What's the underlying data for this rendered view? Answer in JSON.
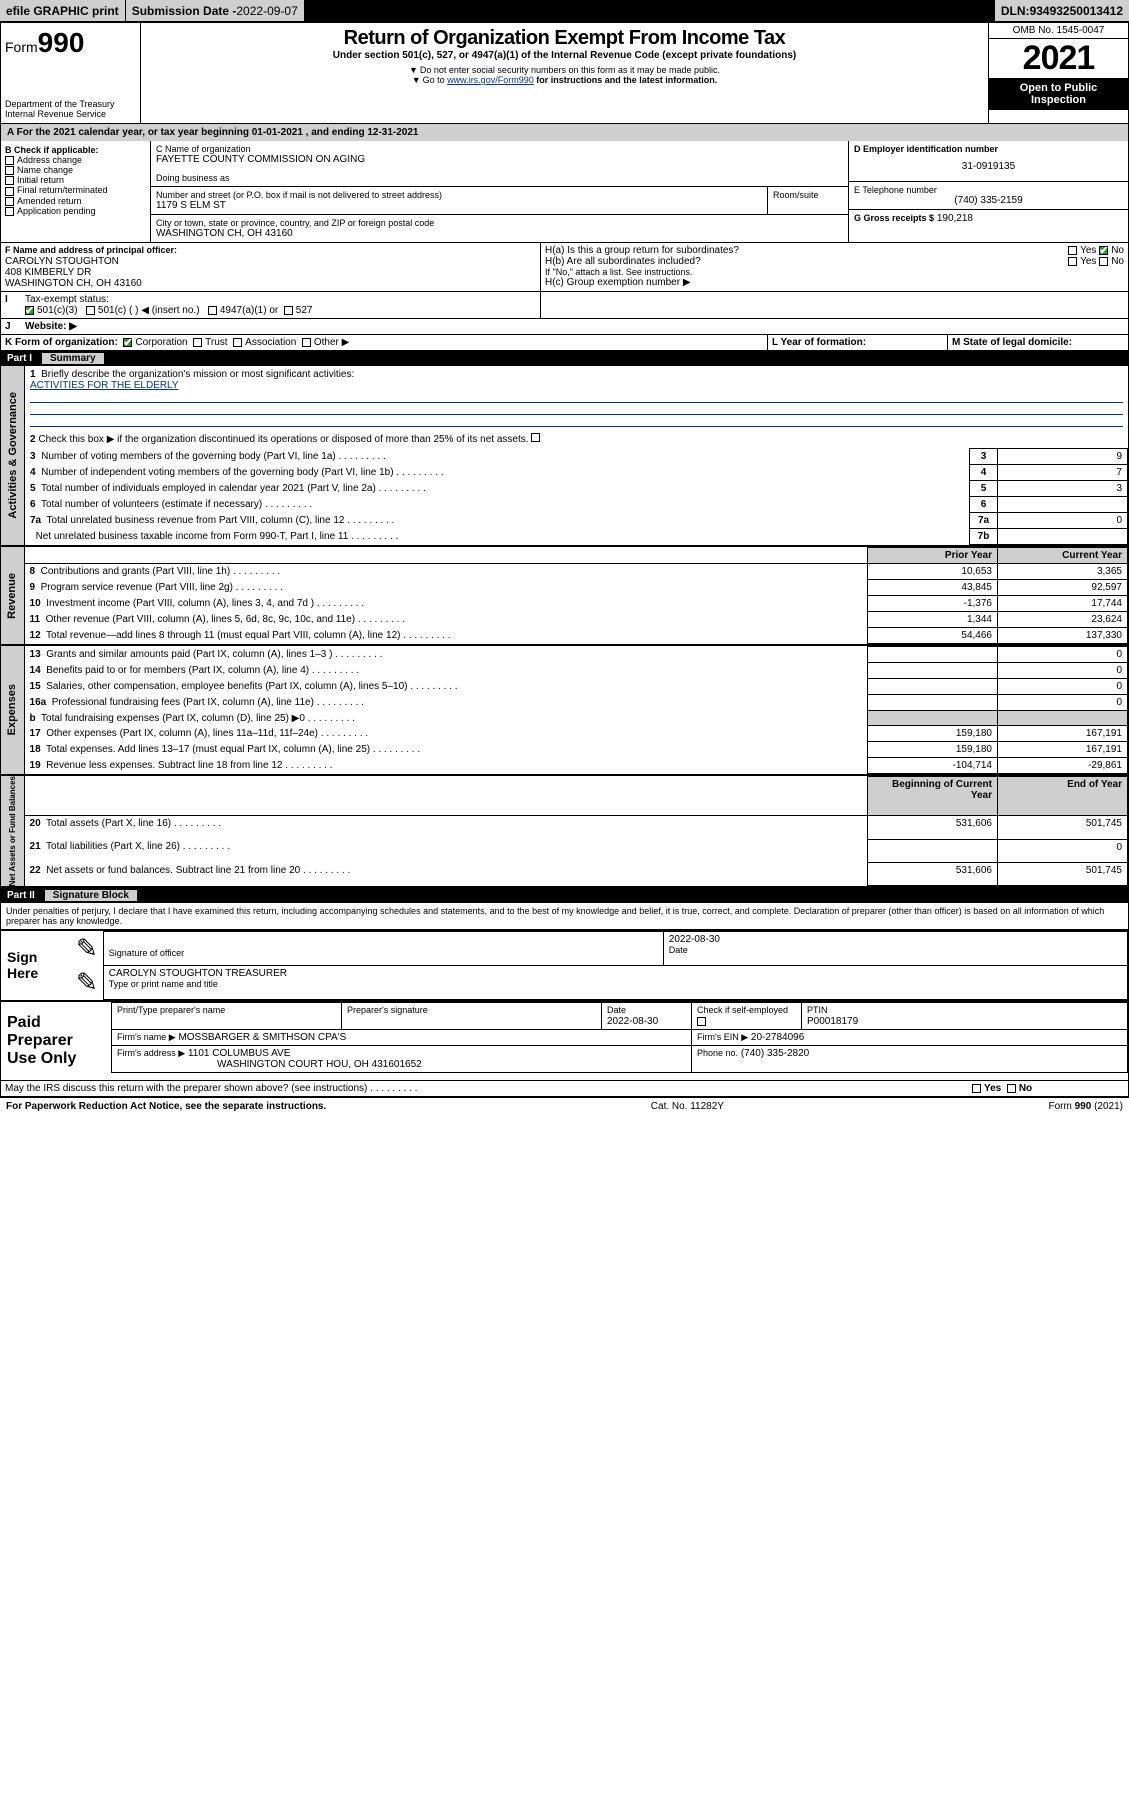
{
  "topbar": {
    "efile": "efile GRAPHIC print",
    "submission_label": "Submission Date - ",
    "submission_date": "2022-09-07",
    "dln_label": "DLN: ",
    "dln": "93493250013412"
  },
  "header": {
    "form_prefix": "Form",
    "form_no": "990",
    "dept1": "Department of the Treasury",
    "dept2": "Internal Revenue Service",
    "title": "Return of Organization Exempt From Income Tax",
    "sub1": "Under section 501(c), 527, or 4947(a)(1) of the Internal Revenue Code (except private foundations)",
    "sub2": "Do not enter social security numbers on this form as it may be made public.",
    "sub3_pre": "Go to ",
    "sub3_link": "www.irs.gov/Form990",
    "sub3_post": " for instructions and the latest information.",
    "omb": "OMB No. 1545-0047",
    "year": "2021",
    "inspect": "Open to Public Inspection"
  },
  "lineA": {
    "pre": "For the 2021 calendar year, or tax year beginning ",
    "begin": "01-01-2021",
    "mid": " , and ending ",
    "end": "12-31-2021"
  },
  "boxB": {
    "title": "B Check if applicable:",
    "items": [
      "Address change",
      "Name change",
      "Initial return",
      "Final return/terminated",
      "Amended return",
      "Application pending"
    ]
  },
  "boxC": {
    "label": "C Name of organization",
    "name": "FAYETTE COUNTY COMMISSION ON AGING",
    "dba_label": "Doing business as",
    "dba_value": "",
    "street_label": "Number and street (or P.O. box if mail is not delivered to street address)",
    "room_label": "Room/suite",
    "street": "1179 S ELM ST",
    "city_label": "City or town, state or province, country, and ZIP or foreign postal code",
    "city": "WASHINGTON CH, OH  43160"
  },
  "boxD": {
    "label": "D Employer identification number",
    "value": "31-0919135"
  },
  "boxE": {
    "label": "E Telephone number",
    "value": "(740) 335-2159"
  },
  "boxG": {
    "label": "G Gross receipts $",
    "value": "190,218"
  },
  "boxF": {
    "label": "F Name and address of principal officer:",
    "name": "CAROLYN STOUGHTON",
    "addr1": "408 KIMBERLY DR",
    "addr2": "WASHINGTON CH, OH  43160"
  },
  "boxH": {
    "ha": "H(a)  Is this a group return for subordinates?",
    "hb": "H(b)  Are all subordinates included?",
    "hb_note": "If \"No,\" attach a list. See instructions.",
    "hc": "H(c)  Group exemption number ▶",
    "yes": "Yes",
    "no": "No"
  },
  "boxI": {
    "label": "Tax-exempt status:",
    "opts": [
      "501(c)(3)",
      "501(c) (   ) ◀ (insert no.)",
      "4947(a)(1) or",
      "527"
    ]
  },
  "boxJ": {
    "label": "Website: ▶",
    "value": ""
  },
  "boxK": {
    "label": "K Form of organization:",
    "opts": [
      "Corporation",
      "Trust",
      "Association",
      "Other ▶"
    ]
  },
  "boxL": {
    "label": "L Year of formation:",
    "value": ""
  },
  "boxM": {
    "label": "M State of legal domicile:",
    "value": ""
  },
  "part1": {
    "label": "Part I",
    "title": "Summary",
    "q1": "Briefly describe the organization's mission or most significant activities:",
    "mission": "ACTIVITIES FOR THE ELDERLY",
    "q2": "Check this box ▶        if the organization discontinued its operations or disposed of more than 25% of its net assets.",
    "rows_gov": [
      {
        "n": "3",
        "t": "Number of voting members of the governing body (Part VI, line 1a)",
        "rn": "3",
        "v": "9"
      },
      {
        "n": "4",
        "t": "Number of independent voting members of the governing body (Part VI, line 1b)",
        "rn": "4",
        "v": "7"
      },
      {
        "n": "5",
        "t": "Total number of individuals employed in calendar year 2021 (Part V, line 2a)",
        "rn": "5",
        "v": "3"
      },
      {
        "n": "6",
        "t": "Total number of volunteers (estimate if necessary)",
        "rn": "6",
        "v": ""
      },
      {
        "n": "7a",
        "t": "Total unrelated business revenue from Part VIII, column (C), line 12",
        "rn": "7a",
        "v": "0"
      },
      {
        "n": "",
        "t": "Net unrelated business taxable income from Form 990-T, Part I, line 11",
        "rn": "7b",
        "v": ""
      }
    ],
    "col_prior": "Prior Year",
    "col_current": "Current Year",
    "rev": [
      {
        "n": "8",
        "t": "Contributions and grants (Part VIII, line 1h)",
        "p": "10,653",
        "c": "3,365"
      },
      {
        "n": "9",
        "t": "Program service revenue (Part VIII, line 2g)",
        "p": "43,845",
        "c": "92,597"
      },
      {
        "n": "10",
        "t": "Investment income (Part VIII, column (A), lines 3, 4, and 7d )",
        "p": "-1,376",
        "c": "17,744"
      },
      {
        "n": "11",
        "t": "Other revenue (Part VIII, column (A), lines 5, 6d, 8c, 9c, 10c, and 11e)",
        "p": "1,344",
        "c": "23,624"
      },
      {
        "n": "12",
        "t": "Total revenue—add lines 8 through 11 (must equal Part VIII, column (A), line 12)",
        "p": "54,466",
        "c": "137,330"
      }
    ],
    "exp": [
      {
        "n": "13",
        "t": "Grants and similar amounts paid (Part IX, column (A), lines 1–3 )",
        "p": "",
        "c": "0"
      },
      {
        "n": "14",
        "t": "Benefits paid to or for members (Part IX, column (A), line 4)",
        "p": "",
        "c": "0"
      },
      {
        "n": "15",
        "t": "Salaries, other compensation, employee benefits (Part IX, column (A), lines 5–10)",
        "p": "",
        "c": "0"
      },
      {
        "n": "16a",
        "t": "Professional fundraising fees (Part IX, column (A), line 11e)",
        "p": "",
        "c": "0"
      },
      {
        "n": "b",
        "t": "Total fundraising expenses (Part IX, column (D), line 25) ▶0",
        "p": "SHADE",
        "c": "SHADE"
      },
      {
        "n": "17",
        "t": "Other expenses (Part IX, column (A), lines 11a–11d, 11f–24e)",
        "p": "159,180",
        "c": "167,191"
      },
      {
        "n": "18",
        "t": "Total expenses. Add lines 13–17 (must equal Part IX, column (A), line 25)",
        "p": "159,180",
        "c": "167,191"
      },
      {
        "n": "19",
        "t": "Revenue less expenses. Subtract line 18 from line 12",
        "p": "-104,714",
        "c": "-29,861"
      }
    ],
    "col_begin": "Beginning of Current Year",
    "col_end": "End of Year",
    "net": [
      {
        "n": "20",
        "t": "Total assets (Part X, line 16)",
        "p": "531,606",
        "c": "501,745"
      },
      {
        "n": "21",
        "t": "Total liabilities (Part X, line 26)",
        "p": "",
        "c": "0"
      },
      {
        "n": "22",
        "t": "Net assets or fund balances. Subtract line 21 from line 20",
        "p": "531,606",
        "c": "501,745"
      }
    ],
    "vt_gov": "Activities & Governance",
    "vt_rev": "Revenue",
    "vt_exp": "Expenses",
    "vt_net": "Net Assets or Fund Balances"
  },
  "part2": {
    "label": "Part II",
    "title": "Signature Block",
    "decl": "Under penalties of perjury, I declare that I have examined this return, including accompanying schedules and statements, and to the best of my knowledge and belief, it is true, correct, and complete. Declaration of preparer (other than officer) is based on all information of which preparer has any knowledge.",
    "sign_here": "Sign Here",
    "sig_officer": "Signature of officer",
    "date_label": "Date",
    "date": "2022-08-30",
    "officer_name": "CAROLYN STOUGHTON  TREASURER",
    "type_name": "Type or print name and title",
    "paid": "Paid Preparer Use Only",
    "pt_name": "Print/Type preparer's name",
    "pt_sig": "Preparer's signature",
    "pt_date": "2022-08-30",
    "check_self": "Check          if self-employed",
    "ptin_label": "PTIN",
    "ptin": "P00018179",
    "firm_name_label": "Firm's name   ▶",
    "firm_name": "MOSSBARGER & SMITHSON CPA'S",
    "firm_ein_label": "Firm's EIN ▶",
    "firm_ein": "20-2784096",
    "firm_addr_label": "Firm's address ▶",
    "firm_addr1": "1101 COLUMBUS AVE",
    "firm_addr2": "WASHINGTON COURT HOU, OH  431601652",
    "phone_label": "Phone no.",
    "phone": "(740) 335-2820",
    "irs_q": "May the IRS discuss this return with the preparer shown above? (see instructions)"
  },
  "footer": {
    "left": "For Paperwork Reduction Act Notice, see the separate instructions.",
    "mid": "Cat. No. 11282Y",
    "right": "Form 990 (2021)"
  }
}
